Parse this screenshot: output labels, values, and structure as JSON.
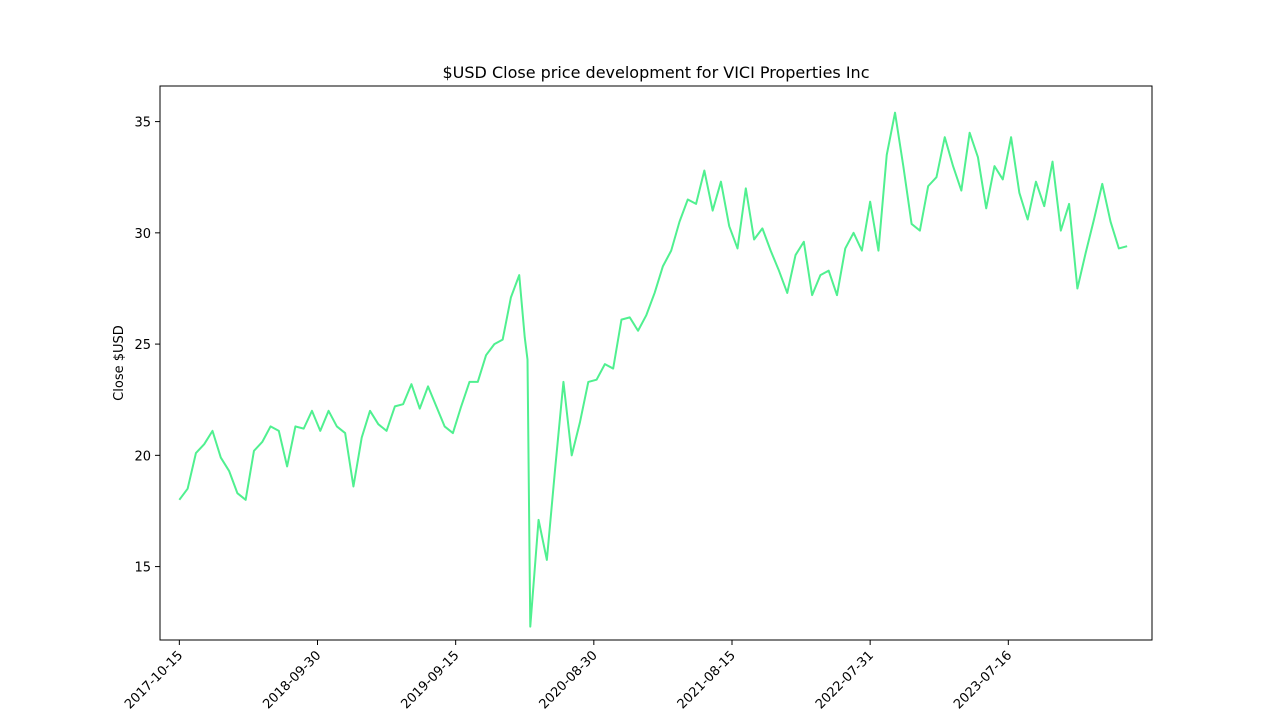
{
  "chart_data": {
    "type": "line",
    "title": "$USD Close price development for VICI Properties Inc",
    "xlabel": "",
    "ylabel": "Close $USD",
    "x_ticks": [
      "2017-10-15",
      "2018-09-30",
      "2019-09-15",
      "2020-08-30",
      "2021-08-15",
      "2022-07-31",
      "2023-07-16"
    ],
    "y_ticks": [
      15,
      20,
      25,
      30,
      35
    ],
    "xlim": [
      "2017-08-27",
      "2024-07-14"
    ],
    "ylim": [
      11.7,
      36.6
    ],
    "grid": false,
    "line_color": "#50f090",
    "series": [
      {
        "name": "",
        "x": [
          "2017-10-15",
          "2017-11-05",
          "2017-11-26",
          "2017-12-17",
          "2018-01-07",
          "2018-01-28",
          "2018-02-18",
          "2018-03-11",
          "2018-04-01",
          "2018-04-22",
          "2018-05-13",
          "2018-06-03",
          "2018-06-24",
          "2018-07-15",
          "2018-08-05",
          "2018-08-26",
          "2018-09-16",
          "2018-10-07",
          "2018-10-28",
          "2018-11-18",
          "2018-12-09",
          "2018-12-30",
          "2019-01-20",
          "2019-02-10",
          "2019-03-03",
          "2019-03-24",
          "2019-04-14",
          "2019-05-05",
          "2019-05-26",
          "2019-06-16",
          "2019-07-07",
          "2019-07-28",
          "2019-08-18",
          "2019-09-08",
          "2019-09-29",
          "2019-10-20",
          "2019-11-10",
          "2019-12-01",
          "2019-12-22",
          "2020-01-12",
          "2020-02-02",
          "2020-02-23",
          "2020-03-08",
          "2020-03-15",
          "2020-03-22",
          "2020-04-12",
          "2020-05-03",
          "2020-05-24",
          "2020-06-14",
          "2020-07-05",
          "2020-07-26",
          "2020-08-16",
          "2020-09-06",
          "2020-09-27",
          "2020-10-18",
          "2020-11-08",
          "2020-11-29",
          "2020-12-20",
          "2021-01-10",
          "2021-01-31",
          "2021-02-21",
          "2021-03-14",
          "2021-04-04",
          "2021-04-25",
          "2021-05-16",
          "2021-06-06",
          "2021-06-27",
          "2021-07-18",
          "2021-08-08",
          "2021-08-29",
          "2021-09-19",
          "2021-10-10",
          "2021-10-31",
          "2021-11-21",
          "2021-12-12",
          "2022-01-02",
          "2022-01-23",
          "2022-02-13",
          "2022-03-06",
          "2022-03-27",
          "2022-04-17",
          "2022-05-08",
          "2022-05-29",
          "2022-06-19",
          "2022-07-10",
          "2022-07-31",
          "2022-08-21",
          "2022-09-11",
          "2022-10-02",
          "2022-10-23",
          "2022-11-13",
          "2022-12-04",
          "2022-12-25",
          "2023-01-15",
          "2023-02-05",
          "2023-02-26",
          "2023-03-19",
          "2023-04-09",
          "2023-04-30",
          "2023-05-21",
          "2023-06-11",
          "2023-07-02",
          "2023-07-23",
          "2023-08-13",
          "2023-09-03",
          "2023-09-24",
          "2023-10-15",
          "2023-11-05",
          "2023-11-26",
          "2023-12-17",
          "2024-01-07",
          "2024-01-28",
          "2024-02-18",
          "2024-03-10",
          "2024-03-31",
          "2024-04-21",
          "2024-05-12"
        ],
        "values": [
          18.0,
          18.5,
          20.1,
          20.5,
          21.1,
          19.9,
          19.3,
          18.3,
          18.0,
          20.2,
          20.6,
          21.3,
          21.1,
          19.5,
          21.3,
          21.2,
          22.0,
          21.1,
          22.0,
          21.3,
          21.0,
          18.6,
          20.8,
          22.0,
          21.4,
          21.1,
          22.2,
          22.3,
          23.2,
          22.1,
          23.1,
          22.2,
          21.3,
          21.0,
          22.2,
          23.3,
          23.3,
          24.5,
          25.0,
          25.2,
          27.1,
          28.1,
          25.3,
          24.3,
          12.3,
          17.1,
          15.3,
          19.4,
          23.3,
          20.0,
          21.5,
          23.3,
          23.4,
          24.1,
          23.9,
          26.1,
          26.2,
          25.6,
          26.3,
          27.3,
          28.5,
          29.2,
          30.5,
          31.5,
          31.3,
          32.8,
          31.0,
          32.3,
          30.3,
          29.3,
          32.0,
          29.7,
          30.2,
          29.2,
          28.3,
          27.3,
          29.0,
          29.6,
          27.2,
          28.1,
          28.3,
          27.2,
          29.3,
          30.0,
          29.2,
          31.4,
          29.2,
          33.5,
          35.4,
          33.0,
          30.4,
          30.1,
          32.1,
          32.5,
          34.3,
          33.0,
          31.9,
          34.5,
          33.4,
          31.1,
          33.0,
          32.4,
          34.3,
          31.8,
          30.6,
          32.3,
          31.2,
          33.2,
          30.1,
          31.3,
          27.5,
          29.1,
          30.6,
          32.2,
          30.5,
          29.3,
          29.4
        ]
      }
    ]
  }
}
